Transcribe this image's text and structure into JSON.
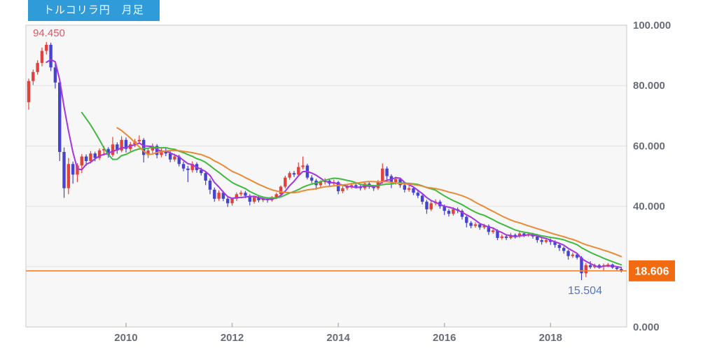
{
  "title_badge": {
    "text": "トルコリラ円　月足",
    "bg": "#2f9bd8",
    "fg": "#ffffff"
  },
  "high_label": {
    "text": "94.450",
    "value": 94.45,
    "color": "#e25563"
  },
  "low_label": {
    "text": "15.504",
    "value": 15.504,
    "color": "#4f74d2"
  },
  "current_price": {
    "text": "18.606",
    "value": 18.606,
    "badge_bg": "#f26b10",
    "badge_fg": "#ffffff",
    "line_color": "#f08437"
  },
  "y_axis": {
    "color": "#676d78",
    "labels": [
      {
        "text": "100.000",
        "value": 100
      },
      {
        "text": "80.000",
        "value": 80
      },
      {
        "text": "60.000",
        "value": 60
      },
      {
        "text": "40.000",
        "value": 40
      },
      {
        "text": "0.000",
        "value": 0
      }
    ]
  },
  "x_axis": {
    "color": "#676d78",
    "ticks": [
      {
        "label": "2010",
        "month_index": 22
      },
      {
        "label": "2012",
        "month_index": 46
      },
      {
        "label": "2014",
        "month_index": 70
      },
      {
        "label": "2016",
        "month_index": 94
      },
      {
        "label": "2018",
        "month_index": 118
      }
    ]
  },
  "chart_data": {
    "type": "candlestick",
    "symbol": "トルコリラ円",
    "timeframe": "月足",
    "title": "トルコリラ円　月足",
    "ylim": [
      0,
      100
    ],
    "gridlines_y": [
      20,
      40,
      60,
      80
    ],
    "grid_on": true,
    "high": 94.45,
    "low": 15.504,
    "last": 18.606,
    "up_color": "#e2413c",
    "down_color": "#4543cf",
    "moving_averages": [
      {
        "name": "ma-short",
        "period": 5,
        "color": "#a335e0"
      },
      {
        "name": "ma-medium",
        "period": 13,
        "color": "#3fba3f"
      },
      {
        "name": "ma-long",
        "period": 21,
        "color": "#e88a36"
      }
    ],
    "candles": [
      [
        74.5,
        82.3,
        72.0,
        81.5
      ],
      [
        81.5,
        85.3,
        80.2,
        84.5
      ],
      [
        84.5,
        88.4,
        83.6,
        87.5
      ],
      [
        87.5,
        92.6,
        86.4,
        91.5
      ],
      [
        91.5,
        94.45,
        90.3,
        93.5
      ],
      [
        93.5,
        94.2,
        84.8,
        86.0
      ],
      [
        86.0,
        87.2,
        79.0,
        81.0
      ],
      [
        81.0,
        82.0,
        55.0,
        58.0
      ],
      [
        58.0,
        59.5,
        42.8,
        46.0
      ],
      [
        46.0,
        56.0,
        44.0,
        54.0
      ],
      [
        54.0,
        54.8,
        47.5,
        50.5
      ],
      [
        50.5,
        54.3,
        48.0,
        53.5
      ],
      [
        53.5,
        57.3,
        51.0,
        56.5
      ],
      [
        56.5,
        57.2,
        53.4,
        55.0
      ],
      [
        55.0,
        58.3,
        54.2,
        57.5
      ],
      [
        57.5,
        58.1,
        54.9,
        56.0
      ],
      [
        56.0,
        59.2,
        55.3,
        58.5
      ],
      [
        58.5,
        60.0,
        56.8,
        59.0
      ],
      [
        59.0,
        59.6,
        56.1,
        57.0
      ],
      [
        57.0,
        63.0,
        56.4,
        60.5
      ],
      [
        60.5,
        61.2,
        57.4,
        58.5
      ],
      [
        58.5,
        63.2,
        57.9,
        62.0
      ],
      [
        62.0,
        62.8,
        57.8,
        59.0
      ],
      [
        59.0,
        61.3,
        58.0,
        60.5
      ],
      [
        60.5,
        62.3,
        59.6,
        61.5
      ],
      [
        61.5,
        63.5,
        60.6,
        62.0
      ],
      [
        62.0,
        62.6,
        54.5,
        57.0
      ],
      [
        57.0,
        59.3,
        56.0,
        58.5
      ],
      [
        58.5,
        60.8,
        57.6,
        60.0
      ],
      [
        60.0,
        60.6,
        55.9,
        57.0
      ],
      [
        57.0,
        59.3,
        56.2,
        58.5
      ],
      [
        58.5,
        59.2,
        56.6,
        57.5
      ],
      [
        57.5,
        58.2,
        54.6,
        55.5
      ],
      [
        55.5,
        57.4,
        54.8,
        56.5
      ],
      [
        56.5,
        57.1,
        53.2,
        54.0
      ],
      [
        54.0,
        54.8,
        51.6,
        52.5
      ],
      [
        52.5,
        53.4,
        48.0,
        52.0
      ],
      [
        52.0,
        54.9,
        51.2,
        54.0
      ],
      [
        54.0,
        54.6,
        51.1,
        52.0
      ],
      [
        52.0,
        52.8,
        50.2,
        51.0
      ],
      [
        51.0,
        51.6,
        47.0,
        48.5
      ],
      [
        48.5,
        49.2,
        44.0,
        45.5
      ],
      [
        45.5,
        46.2,
        41.5,
        42.5
      ],
      [
        42.5,
        45.3,
        41.8,
        44.5
      ],
      [
        44.5,
        45.1,
        41.7,
        42.5
      ],
      [
        42.5,
        43.2,
        39.8,
        41.0
      ],
      [
        41.0,
        42.9,
        40.2,
        42.5
      ],
      [
        42.5,
        44.6,
        41.8,
        44.0
      ],
      [
        44.0,
        45.2,
        43.3,
        44.5
      ],
      [
        44.5,
        45.1,
        42.7,
        43.5
      ],
      [
        43.5,
        44.0,
        40.3,
        41.5
      ],
      [
        41.5,
        43.4,
        40.9,
        43.0
      ],
      [
        43.0,
        43.6,
        41.3,
        42.0
      ],
      [
        42.0,
        43.1,
        41.4,
        42.5
      ],
      [
        42.5,
        43.0,
        41.2,
        42.0
      ],
      [
        42.0,
        43.4,
        41.5,
        43.0
      ],
      [
        43.0,
        44.5,
        42.4,
        44.0
      ],
      [
        44.0,
        46.9,
        43.5,
        46.5
      ],
      [
        46.5,
        50.1,
        45.9,
        49.5
      ],
      [
        49.5,
        51.6,
        48.8,
        51.0
      ],
      [
        51.0,
        51.7,
        49.7,
        50.5
      ],
      [
        50.5,
        54.5,
        49.9,
        53.0
      ],
      [
        53.0,
        56.5,
        52.2,
        53.5
      ],
      [
        53.5,
        54.1,
        48.9,
        49.5
      ],
      [
        49.5,
        50.3,
        47.7,
        48.5
      ],
      [
        48.5,
        49.1,
        45.5,
        47.0
      ],
      [
        47.0,
        48.6,
        46.3,
        48.0
      ],
      [
        48.0,
        49.3,
        47.2,
        48.5
      ],
      [
        48.5,
        49.1,
        46.6,
        47.5
      ],
      [
        47.5,
        48.8,
        46.9,
        48.0
      ],
      [
        48.0,
        48.4,
        44.0,
        45.0
      ],
      [
        45.0,
        46.7,
        44.3,
        46.0
      ],
      [
        46.0,
        47.2,
        45.3,
        46.5
      ],
      [
        46.5,
        47.8,
        45.8,
        47.0
      ],
      [
        47.0,
        47.6,
        45.9,
        46.5
      ],
      [
        46.5,
        47.1,
        45.2,
        46.0
      ],
      [
        46.0,
        48.1,
        45.4,
        47.5
      ],
      [
        47.5,
        48.0,
        45.8,
        46.5
      ],
      [
        46.5,
        47.1,
        45.1,
        46.0
      ],
      [
        46.0,
        48.7,
        45.4,
        48.0
      ],
      [
        48.0,
        54.2,
        47.5,
        52.5
      ],
      [
        52.5,
        53.2,
        48.7,
        50.0
      ],
      [
        50.0,
        50.6,
        46.0,
        48.0
      ],
      [
        48.0,
        49.8,
        47.2,
        49.0
      ],
      [
        49.0,
        49.5,
        46.1,
        47.0
      ],
      [
        47.0,
        47.7,
        44.6,
        45.5
      ],
      [
        45.5,
        46.8,
        44.8,
        46.0
      ],
      [
        46.0,
        46.5,
        43.7,
        44.5
      ],
      [
        44.5,
        45.2,
        42.7,
        43.5
      ],
      [
        43.5,
        44.0,
        40.6,
        41.5
      ],
      [
        41.5,
        42.1,
        37.5,
        39.0
      ],
      [
        39.0,
        41.7,
        38.4,
        41.0
      ],
      [
        41.0,
        42.3,
        40.3,
        41.5
      ],
      [
        41.5,
        42.1,
        39.2,
        40.0
      ],
      [
        40.0,
        40.6,
        37.1,
        38.5
      ],
      [
        38.5,
        39.1,
        36.6,
        37.5
      ],
      [
        37.5,
        39.7,
        36.9,
        39.0
      ],
      [
        39.0,
        39.6,
        37.7,
        38.5
      ],
      [
        38.5,
        39.0,
        35.6,
        36.5
      ],
      [
        36.5,
        37.1,
        33.0,
        34.5
      ],
      [
        34.5,
        35.1,
        32.7,
        33.5
      ],
      [
        33.5,
        34.7,
        32.9,
        34.0
      ],
      [
        34.0,
        34.5,
        32.2,
        33.0
      ],
      [
        33.0,
        34.2,
        32.4,
        33.5
      ],
      [
        33.5,
        34.0,
        30.5,
        31.5
      ],
      [
        31.5,
        32.7,
        30.9,
        32.0
      ],
      [
        32.0,
        32.4,
        28.8,
        29.5
      ],
      [
        29.5,
        30.7,
        28.9,
        30.0
      ],
      [
        30.0,
        30.5,
        28.8,
        29.5
      ],
      [
        29.5,
        31.2,
        29.0,
        30.5
      ],
      [
        30.5,
        31.0,
        29.3,
        30.0
      ],
      [
        30.0,
        31.6,
        29.5,
        31.0
      ],
      [
        31.0,
        31.5,
        29.8,
        30.5
      ],
      [
        30.5,
        31.3,
        29.9,
        30.8
      ],
      [
        30.8,
        31.2,
        29.3,
        30.0
      ],
      [
        30.0,
        30.5,
        27.9,
        28.8
      ],
      [
        28.8,
        29.4,
        27.3,
        28.2
      ],
      [
        28.2,
        29.4,
        27.7,
        28.8
      ],
      [
        28.8,
        29.3,
        27.2,
        28.2
      ],
      [
        28.2,
        28.7,
        26.3,
        27.2
      ],
      [
        27.2,
        27.6,
        25.2,
        26.2
      ],
      [
        26.2,
        26.7,
        24.3,
        25.2
      ],
      [
        25.2,
        25.6,
        22.3,
        23.5
      ],
      [
        23.5,
        24.7,
        22.9,
        24.0
      ],
      [
        24.0,
        24.4,
        22.4,
        23.0
      ],
      [
        23.0,
        23.5,
        15.504,
        17.8
      ],
      [
        17.8,
        21.2,
        16.5,
        20.5
      ],
      [
        20.5,
        21.8,
        19.2,
        19.8
      ],
      [
        19.8,
        21.0,
        19.4,
        20.5
      ],
      [
        20.5,
        20.9,
        19.3,
        20.0
      ],
      [
        20.0,
        21.0,
        18.7,
        20.4
      ],
      [
        20.4,
        21.2,
        19.8,
        20.7
      ],
      [
        20.7,
        21.0,
        19.3,
        19.7
      ],
      [
        19.7,
        20.1,
        18.8,
        19.2
      ],
      [
        19.2,
        19.5,
        18.1,
        18.606
      ]
    ]
  }
}
